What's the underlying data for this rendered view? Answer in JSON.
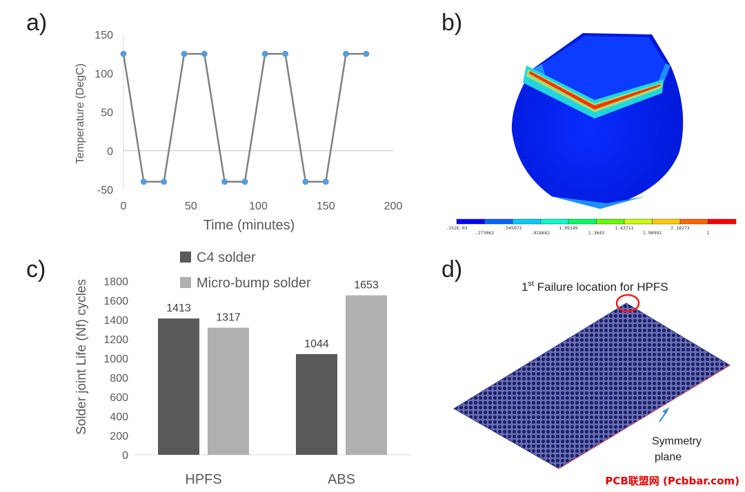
{
  "panels": {
    "a": {
      "letter": "a)"
    },
    "b": {
      "letter": "b)"
    },
    "c": {
      "letter": "c)"
    },
    "d": {
      "letter": "d)"
    }
  },
  "chart_data": [
    {
      "type": "line",
      "panel": "a",
      "xlabel": "Time (minutes)",
      "ylabel": "Temperature (DegC)",
      "xlim": [
        0,
        200
      ],
      "ylim": [
        -50,
        150
      ],
      "xticks": [
        0,
        50,
        100,
        150,
        200
      ],
      "yticks": [
        -50,
        0,
        50,
        100,
        150
      ],
      "series": [
        {
          "color": "#7f7f7f",
          "marker_color": "#5b9bd5",
          "x": [
            0,
            15,
            30,
            45,
            60,
            75,
            90,
            105,
            120,
            135,
            150,
            165,
            180
          ],
          "y": [
            125,
            -40,
            -40,
            125,
            125,
            -40,
            -40,
            125,
            125,
            -40,
            -40,
            125,
            125
          ]
        }
      ],
      "grid": "horizontal-zero-line"
    },
    {
      "type": "heatmap",
      "panel": "b",
      "colorbar_labels_top": [
        ".252E-03",
        ".545072",
        "1.09149",
        "1.63711",
        "2.18273"
      ],
      "colorbar_labels_bottom": [
        ".273062",
        ".818682",
        "1.3643",
        "1.90992",
        "2"
      ],
      "colorbar_colors": [
        "#0000ff",
        "#0066ff",
        "#00ccff",
        "#00ffcc",
        "#00ff66",
        "#66ff00",
        "#ccff00",
        "#ffcc00",
        "#ff6600",
        "#ff0000"
      ]
    },
    {
      "type": "bar",
      "panel": "c",
      "ylabel": "Solder joint Life (Nf) cycles",
      "categories": [
        "HPFS",
        "ABS"
      ],
      "ylim": [
        0,
        1800
      ],
      "yticks": [
        0,
        200,
        400,
        600,
        800,
        1000,
        1200,
        1400,
        1600,
        1800
      ],
      "legend_position": "top",
      "series": [
        {
          "name": "C4 solder",
          "color": "#595959",
          "values": [
            1413,
            1044
          ],
          "labels": [
            "1413",
            "1044"
          ]
        },
        {
          "name": "Micro-bump solder",
          "color": "#b0b0b0",
          "values": [
            1317,
            1653
          ],
          "labels": [
            "1317",
            "1653"
          ]
        }
      ]
    },
    {
      "type": "diagram",
      "panel": "d",
      "title_prefix": "1",
      "title_sup": "st",
      "title_rest": " Failure location for HPFS",
      "annotation_line1": "Symmetry",
      "annotation_line2": "plane"
    }
  ],
  "watermark": "PCB联盟网 (Pcbbar.com)"
}
